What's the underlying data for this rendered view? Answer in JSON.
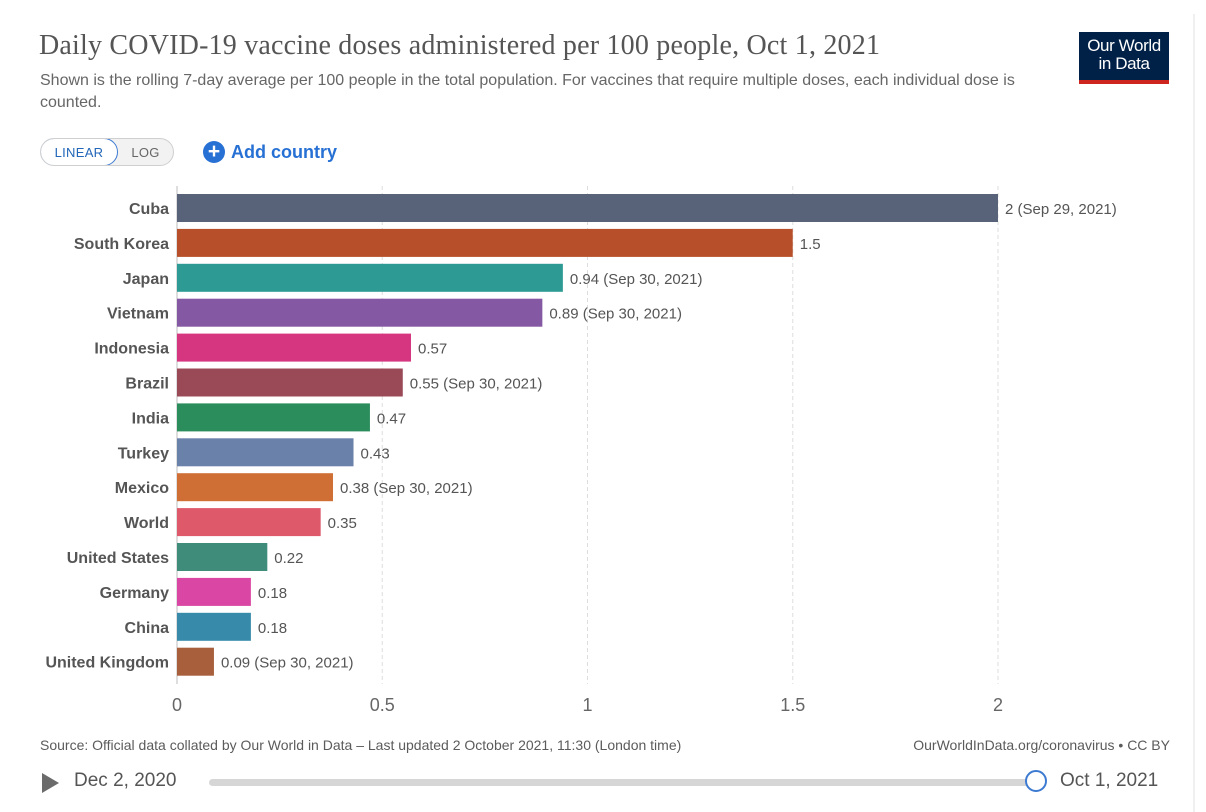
{
  "header": {
    "title": "Daily COVID-19 vaccine doses administered per 100 people, Oct 1, 2021",
    "subtitle": "Shown is the rolling 7-day average per 100 people in the total population. For vaccines that require multiple doses, each individual dose is counted.",
    "logo_line1": "Our World",
    "logo_line2": "in Data"
  },
  "controls": {
    "linear_label": "LINEAR",
    "log_label": "LOG",
    "add_country_label": "Add country",
    "plus_icon": "+"
  },
  "colors": {
    "accent": "#2770d4",
    "logo_bg": "#002147",
    "logo_underline": "#ce261e"
  },
  "chart_data": {
    "type": "bar",
    "orientation": "horizontal",
    "title": "Daily COVID-19 vaccine doses administered per 100 people, Oct 1, 2021",
    "xlabel": "",
    "ylabel": "",
    "xlim": [
      0,
      2
    ],
    "x_ticks": [
      0,
      0.5,
      1,
      1.5,
      2
    ],
    "x_tick_labels": [
      "0",
      "0.5",
      "1",
      "1.5",
      "2"
    ],
    "grid": "vertical dashed",
    "categories": [
      "Cuba",
      "South Korea",
      "Japan",
      "Vietnam",
      "Indonesia",
      "Brazil",
      "India",
      "Turkey",
      "Mexico",
      "World",
      "United States",
      "Germany",
      "China",
      "United Kingdom"
    ],
    "values": [
      2,
      1.5,
      0.94,
      0.89,
      0.57,
      0.55,
      0.47,
      0.43,
      0.38,
      0.35,
      0.22,
      0.18,
      0.18,
      0.09
    ],
    "value_labels": [
      "2 (Sep 29, 2021)",
      "1.5",
      "0.94 (Sep 30, 2021)",
      "0.89 (Sep 30, 2021)",
      "0.57",
      "0.55 (Sep 30, 2021)",
      "0.47",
      "0.43",
      "0.38 (Sep 30, 2021)",
      "0.35",
      "0.22",
      "0.18",
      "0.18",
      "0.09 (Sep 30, 2021)"
    ],
    "colors": [
      "#58637a",
      "#b7502a",
      "#2d9a93",
      "#8558a3",
      "#d6367f",
      "#9a4a56",
      "#2a8d5b",
      "#6a81aa",
      "#cf6f35",
      "#de5a6b",
      "#3f8c7b",
      "#d946a3",
      "#378aa9",
      "#a85f3c"
    ]
  },
  "footer": {
    "source": "Source: Official data collated by Our World in Data – Last updated 2 October 2021, 11:30 (London time)",
    "credit": "OurWorldInData.org/coronavirus • CC BY"
  },
  "timeline": {
    "start_date": "Dec 2, 2020",
    "end_date": "Oct 1, 2021",
    "progress": 1.0
  }
}
